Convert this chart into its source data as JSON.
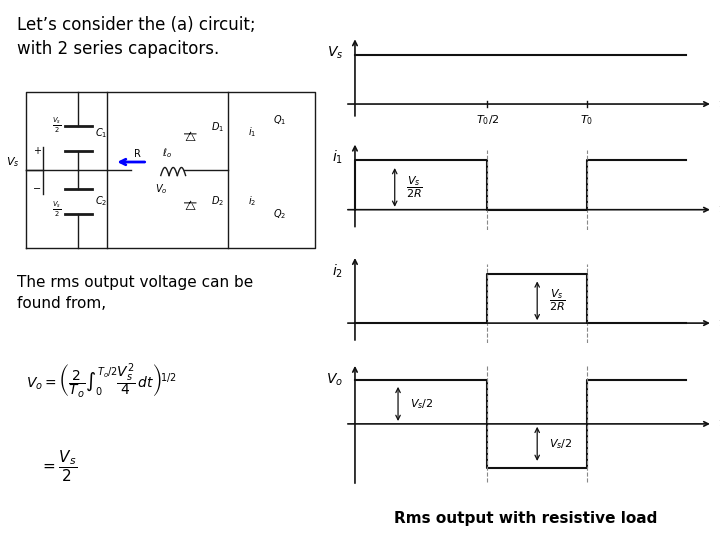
{
  "bg_color": "#ffffff",
  "title_text": "Let’s consider the (a) circuit;\nwith 2 series capacitors.",
  "bottom_text": "Rms output with resistive load",
  "text_rms": "The rms output voltage can be\nfound from,",
  "formula1": "$V_o = \\left( \\dfrac{2}{T_o} \\int_0^{T_o/2} \\dfrac{V_s^2}{4} \\, dt \\right)^{\\!1/2}$",
  "formula2": "$= \\dfrac{V_s}{2}$",
  "waveform_label_Vs": "$V_s$",
  "waveform_label_i1": "$i_1$",
  "waveform_label_i2": "$i_2$",
  "waveform_label_Vo": "$V_o$",
  "tick_T0half": "$T_0/2$",
  "tick_T0": "$T_0$",
  "annot_Vs_2R": "$\\dfrac{V_s}{2R}$",
  "annot_Vs_2R2": "$\\dfrac{V_s}{2R}$",
  "annot_Vs_half_pos": "$V_s/2$",
  "annot_Vs_half_neg": "$V_s/2$",
  "col_wave": "#111111",
  "col_dashed": "#888888",
  "lw_wave": 1.5,
  "T": 10,
  "T0h": 4,
  "T0": 7
}
